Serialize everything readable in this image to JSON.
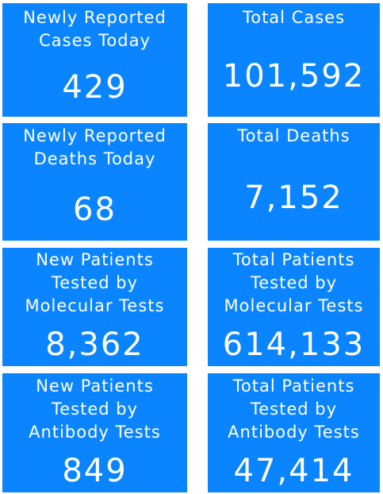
{
  "tiles": {
    "new_cases": {
      "label_lines": [
        "Newly Reported",
        "Cases Today"
      ],
      "value": "429"
    },
    "total_cases": {
      "label_lines": [
        "Total Cases"
      ],
      "value": "101,592"
    },
    "new_deaths": {
      "label_lines": [
        "Newly Reported",
        "Deaths Today"
      ],
      "value": "68"
    },
    "total_deaths": {
      "label_lines": [
        "Total Deaths"
      ],
      "value": "7,152"
    },
    "new_molecular": {
      "label_lines": [
        "New Patients",
        "Tested by",
        "Molecular Tests"
      ],
      "value": "8,362"
    },
    "total_molecular": {
      "label_lines": [
        "Total Patients",
        "Tested by",
        "Molecular Tests"
      ],
      "value": "614,133"
    },
    "new_antibody": {
      "label_lines": [
        "New Patients",
        "Tested by",
        "Antibody Tests"
      ],
      "value": "849"
    },
    "total_antibody": {
      "label_lines": [
        "Total Patients",
        "Tested by",
        "Antibody Tests"
      ],
      "value": "47,414"
    }
  },
  "colors": {
    "tile_background": "#0a85ff",
    "text": "#ffffff"
  }
}
